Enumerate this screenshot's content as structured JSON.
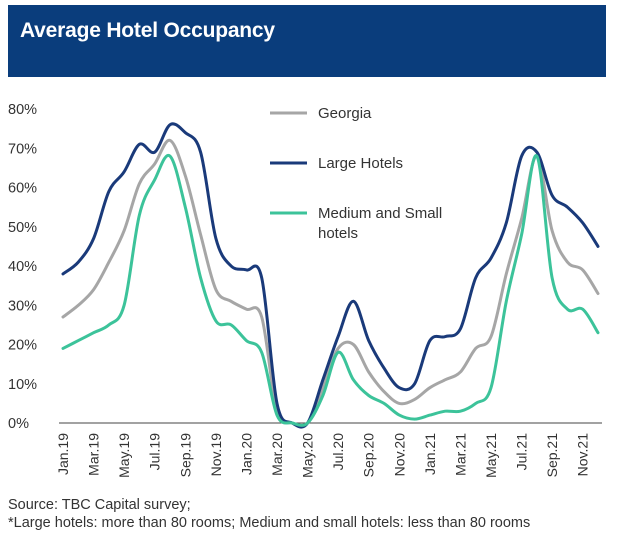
{
  "header": {
    "title": "Average Hotel Occupancy"
  },
  "footnotes": {
    "source": "Source: TBC Capital survey;",
    "note": "*Large hotels: more than 80 rooms; Medium and small hotels: less than 80 rooms"
  },
  "colors": {
    "header_bg": "#0a3d7c",
    "georgia": "#a6a6a6",
    "large": "#1a3a7a",
    "medium_small": "#3cc39a"
  },
  "chart_data": {
    "type": "line",
    "title": "Average Hotel Occupancy",
    "xlabel": "",
    "ylabel": "",
    "ylim": [
      0,
      80
    ],
    "y_ticks": [
      "0%",
      "10%",
      "20%",
      "30%",
      "40%",
      "50%",
      "60%",
      "70%",
      "80%"
    ],
    "x_tick_labels": [
      "Jan.19",
      "Mar.19",
      "May.19",
      "Jul.19",
      "Sep.19",
      "Nov.19",
      "Jan.20",
      "Mar.20",
      "May.20",
      "Jul.20",
      "Sep.20",
      "Nov.20",
      "Jan.21",
      "Mar.21",
      "May.21",
      "Jul.21",
      "Sep.21",
      "Nov.21"
    ],
    "x": [
      "Jan.19",
      "Feb.19",
      "Mar.19",
      "Apr.19",
      "May.19",
      "Jun.19",
      "Jul.19",
      "Aug.19",
      "Sep.19",
      "Oct.19",
      "Nov.19",
      "Dec.19",
      "Jan.20",
      "Feb.20",
      "Mar.20",
      "Apr.20",
      "May.20",
      "Jun.20",
      "Jul.20",
      "Aug.20",
      "Sep.20",
      "Oct.20",
      "Nov.20",
      "Dec.20",
      "Jan.21",
      "Feb.21",
      "Mar.21",
      "Apr.21",
      "May.21",
      "Jun.21",
      "Jul.21",
      "Aug.21",
      "Sep.21",
      "Oct.21",
      "Nov.21",
      "Dec.21"
    ],
    "grid": false,
    "legend_position": "top-center",
    "series": [
      {
        "name": "Georgia",
        "color_key": "georgia",
        "values": [
          27,
          30,
          34,
          41,
          49,
          61,
          66,
          72,
          63,
          48,
          34,
          31,
          29,
          27,
          3,
          0,
          0,
          9,
          19,
          20,
          13,
          8,
          5,
          6,
          9,
          11,
          13,
          19,
          22,
          38,
          52,
          68,
          49,
          41,
          39,
          33
        ]
      },
      {
        "name": "Large Hotels",
        "color_key": "large",
        "values": [
          38,
          41,
          47,
          59,
          64,
          71,
          69,
          76,
          74,
          69,
          47,
          40,
          39,
          37,
          5,
          0,
          0,
          11,
          22,
          31,
          21,
          14,
          9,
          10,
          21,
          22,
          24,
          37,
          42,
          51,
          68,
          69,
          58,
          55,
          51,
          45
        ]
      },
      {
        "name": "Medium and Small hotels",
        "color_key": "medium_small",
        "values": [
          19,
          21,
          23,
          25,
          30,
          53,
          62,
          68,
          55,
          37,
          26,
          25,
          21,
          18,
          2,
          0,
          0,
          7,
          18,
          11,
          7,
          5,
          2,
          1,
          2,
          3,
          3,
          5,
          9,
          31,
          48,
          68,
          37,
          29,
          29,
          23
        ]
      }
    ]
  }
}
